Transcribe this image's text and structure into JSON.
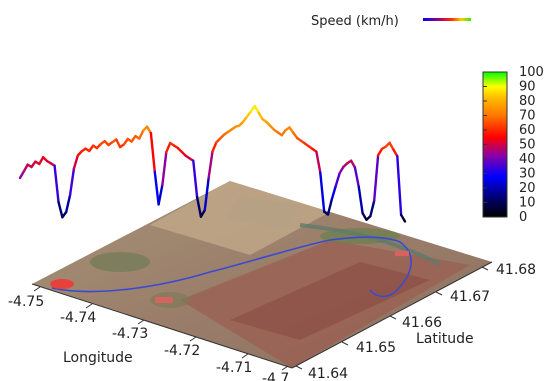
{
  "chart_data": {
    "type": "line",
    "subtype": "3d-line-over-map",
    "legend": {
      "label": "Speed (km/h)",
      "placement": "top-right"
    },
    "colorbar": {
      "ticks": [
        "100",
        "90",
        "80",
        "70",
        "60",
        "50",
        "40",
        "30",
        "20",
        "10",
        "0"
      ],
      "range": [
        0,
        100
      ],
      "colors": [
        "#00ff00",
        "#ffff00",
        "#ff9900",
        "#ff0000",
        "#cc0066",
        "#0000ff",
        "#000000"
      ]
    },
    "x_axis": {
      "label": "Longitude",
      "ticks": [
        "-4.75",
        "-4.74",
        "-4.73",
        "-4.72",
        "-4.71",
        "-4.7"
      ]
    },
    "y_axis": {
      "label": "Latitude",
      "ticks": [
        "41.64",
        "41.65",
        "41.66",
        "41.67",
        "41.68"
      ]
    },
    "speed_samples": [
      40,
      45,
      50,
      48,
      52,
      50,
      55,
      52,
      50,
      48,
      20,
      8,
      12,
      25,
      45,
      55,
      58,
      60,
      58,
      62,
      60,
      63,
      65,
      62,
      64,
      66,
      60,
      62,
      66,
      64,
      68,
      66,
      72,
      75,
      70,
      40,
      15,
      30,
      55,
      62,
      60,
      58,
      55,
      52,
      50,
      48,
      20,
      5,
      10,
      35,
      55,
      62,
      65,
      68,
      70,
      72,
      74,
      75,
      78,
      82,
      86,
      90,
      85,
      80,
      78,
      75,
      72,
      70,
      68,
      72,
      74,
      70,
      66,
      64,
      62,
      60,
      58,
      56,
      40,
      10,
      8,
      20,
      30,
      40,
      45,
      48,
      50,
      45,
      30,
      10,
      5,
      8,
      20,
      55,
      60,
      62,
      65,
      60,
      55,
      10,
      5
    ]
  }
}
